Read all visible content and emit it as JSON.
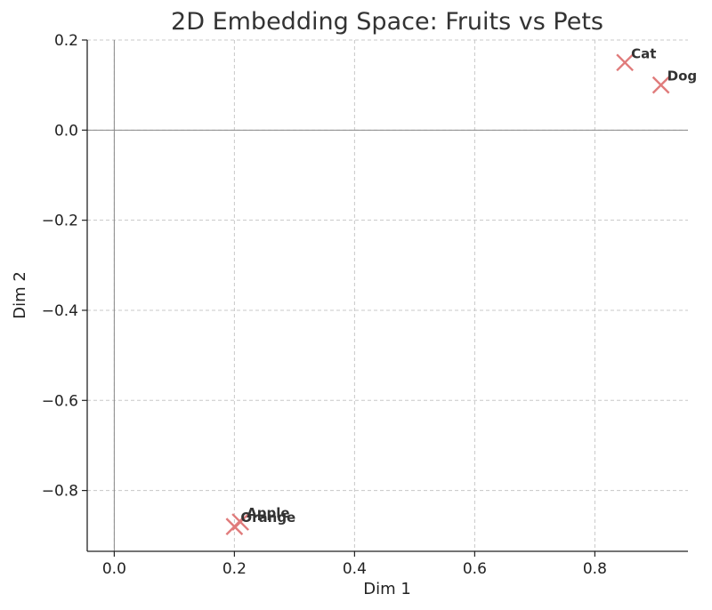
{
  "chart_data": {
    "type": "scatter",
    "title": "2D Embedding Space: Fruits vs Pets",
    "xlabel": "Dim 1",
    "ylabel": "Dim 2",
    "xlim": [
      -0.045,
      0.955
    ],
    "ylim": [
      -0.935,
      0.2
    ],
    "xticks": [
      "0.0",
      "0.2",
      "0.4",
      "0.6",
      "0.8"
    ],
    "yticks": [
      "0.2",
      "0.0",
      "−0.2",
      "−0.4",
      "−0.6",
      "−0.8"
    ],
    "x_tick_values": [
      0.0,
      0.2,
      0.4,
      0.6,
      0.8
    ],
    "y_tick_values": [
      0.2,
      0.0,
      -0.2,
      -0.4,
      -0.6,
      -0.8
    ],
    "grid": true,
    "marker": "x",
    "marker_color": "#e07b7b",
    "reference_lines": {
      "x": 0,
      "y": 0
    },
    "points": [
      {
        "label": "Cat",
        "x": 0.85,
        "y": 0.15
      },
      {
        "label": "Dog",
        "x": 0.91,
        "y": 0.1
      },
      {
        "label": "Apple",
        "x": 0.21,
        "y": -0.87
      },
      {
        "label": "Orange",
        "x": 0.2,
        "y": -0.88
      }
    ]
  }
}
